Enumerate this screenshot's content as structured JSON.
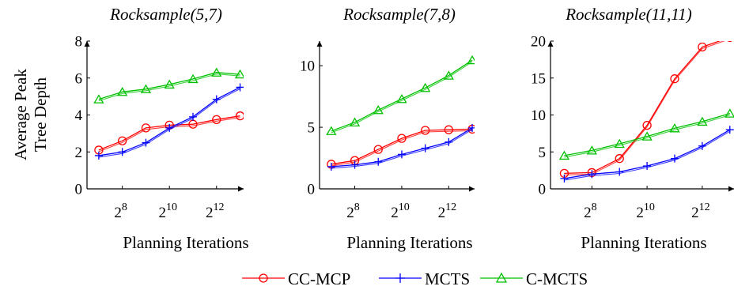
{
  "ylabel_lines": [
    "Average Peak",
    "Tree Depth"
  ],
  "legend": [
    {
      "label": "CC-MCP",
      "color": "#ff0000",
      "marker": "circle"
    },
    {
      "label": "MCTS",
      "color": "#0000ff",
      "marker": "plus"
    },
    {
      "label": "C-MCTS",
      "color": "#00c000",
      "marker": "triangle"
    }
  ],
  "chart_data": [
    {
      "type": "line",
      "title": "Rocksample(5,7)",
      "xlabel": "Planning Iterations",
      "ylabel": "Average Peak Tree Depth",
      "x_log2": [
        7,
        8,
        9,
        10,
        11,
        12,
        13
      ],
      "xticks": [
        8,
        10,
        12
      ],
      "ylim": [
        0,
        8
      ],
      "yticks": [
        0,
        2,
        4,
        6,
        8
      ],
      "series": [
        {
          "name": "CC-MCP",
          "values": [
            2.1,
            2.6,
            3.3,
            3.45,
            3.5,
            3.75,
            3.95
          ]
        },
        {
          "name": "MCTS",
          "values": [
            1.8,
            2.0,
            2.5,
            3.3,
            3.9,
            4.85,
            5.5
          ]
        },
        {
          "name": "C-MCTS",
          "values": [
            4.85,
            5.25,
            5.4,
            5.65,
            5.95,
            6.3,
            6.2
          ]
        }
      ]
    },
    {
      "type": "line",
      "title": "Rocksample(7,8)",
      "xlabel": "Planning Iterations",
      "ylabel": "",
      "x_log2": [
        7,
        8,
        9,
        10,
        11,
        12,
        13
      ],
      "xticks": [
        8,
        10,
        12
      ],
      "ylim": [
        0,
        12
      ],
      "yticks": [
        0,
        5,
        10
      ],
      "series": [
        {
          "name": "CC-MCP",
          "values": [
            2.0,
            2.3,
            3.2,
            4.1,
            4.75,
            4.8,
            4.85
          ]
        },
        {
          "name": "MCTS",
          "values": [
            1.8,
            1.95,
            2.2,
            2.8,
            3.3,
            3.8,
            4.95
          ]
        },
        {
          "name": "C-MCTS",
          "values": [
            4.7,
            5.4,
            6.4,
            7.3,
            8.2,
            9.2,
            10.45
          ]
        }
      ]
    },
    {
      "type": "line",
      "title": "Rocksample(11,11)",
      "xlabel": "Planning Iterations",
      "ylabel": "",
      "x_log2": [
        7,
        8,
        9,
        10,
        11,
        12,
        13
      ],
      "xticks": [
        8,
        10,
        12
      ],
      "ylim": [
        0,
        20
      ],
      "yticks": [
        0,
        5,
        10,
        15,
        20
      ],
      "series": [
        {
          "name": "CC-MCP",
          "values": [
            2.1,
            2.2,
            4.1,
            8.6,
            14.9,
            19.2,
            20.5
          ]
        },
        {
          "name": "MCTS",
          "values": [
            1.4,
            2.0,
            2.3,
            3.1,
            4.1,
            5.8,
            8.0
          ]
        },
        {
          "name": "C-MCTS",
          "values": [
            4.5,
            5.2,
            6.1,
            7.1,
            8.2,
            9.1,
            10.2
          ]
        }
      ]
    }
  ]
}
